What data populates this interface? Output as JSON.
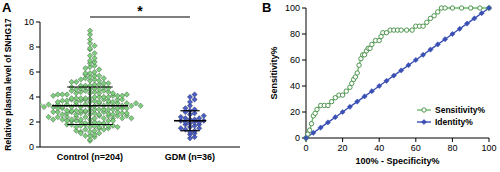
{
  "chart_data": [
    {
      "type": "strip",
      "panel": "A",
      "y_label": "Relative plasma level of SNHG17",
      "categories": [
        "Control (n=204)",
        "GDM (n=36)"
      ],
      "ylim": [
        0,
        10
      ],
      "yticks": [
        0,
        2,
        4,
        6,
        8,
        10
      ],
      "colors": [
        "#7fcf7f",
        "#4c5fc8"
      ],
      "marker": "diamond",
      "annotation": "*",
      "means": [
        3.3,
        2.1
      ],
      "sd": [
        1.5,
        0.8
      ],
      "points": [
        [
          0.5,
          0.6,
          0.8,
          0.9,
          1.0,
          0.9,
          1.1,
          1.2,
          1.3,
          1.4,
          1.5,
          1.2,
          1.4,
          1.3,
          1.1,
          1.5,
          1.6,
          1.7,
          1.8,
          1.9,
          2.0,
          1.6,
          1.7,
          1.8,
          1.9,
          1.6,
          1.7,
          1.8,
          1.9,
          2.0,
          1.7,
          1.8,
          1.9,
          1.6,
          2.1,
          2.2,
          2.3,
          2.4,
          2.5,
          2.1,
          2.2,
          2.3,
          2.4,
          2.5,
          2.1,
          2.2,
          2.3,
          2.4,
          2.5,
          2.1,
          2.2,
          2.3,
          2.4,
          2.5,
          2.2,
          2.3,
          2.4,
          2.1,
          2.6,
          2.7,
          2.8,
          2.9,
          3.0,
          2.6,
          2.7,
          2.8,
          2.9,
          3.0,
          2.6,
          2.7,
          2.8,
          2.9,
          3.0,
          2.6,
          2.7,
          2.8,
          2.9,
          3.0,
          2.6,
          2.7,
          2.8,
          2.9,
          3.0,
          2.7,
          2.8,
          2.9,
          3.1,
          3.2,
          3.3,
          3.4,
          3.5,
          3.1,
          3.2,
          3.3,
          3.4,
          3.5,
          3.1,
          3.2,
          3.3,
          3.4,
          3.5,
          3.1,
          3.2,
          3.3,
          3.4,
          3.5,
          3.1,
          3.2,
          3.3,
          3.4,
          3.5,
          3.2,
          3.3,
          3.4,
          3.6,
          3.7,
          3.8,
          3.9,
          4.0,
          3.6,
          3.7,
          3.8,
          3.9,
          4.0,
          3.6,
          3.7,
          3.8,
          3.9,
          4.0,
          3.6,
          3.7,
          3.8,
          3.9,
          4.0,
          3.7,
          3.8,
          3.6,
          3.9,
          4.1,
          4.2,
          4.3,
          4.4,
          4.5,
          4.1,
          4.2,
          4.3,
          4.4,
          4.5,
          4.1,
          4.2,
          4.3,
          4.4,
          4.5,
          4.2,
          4.3,
          4.1,
          4.6,
          4.7,
          4.8,
          4.9,
          5.0,
          4.6,
          4.7,
          4.8,
          4.9,
          5.0,
          4.6,
          4.7,
          4.8,
          4.9,
          5.1,
          5.2,
          5.3,
          5.4,
          5.5,
          5.1,
          5.2,
          5.3,
          5.4,
          5.5,
          5.6,
          5.7,
          5.8,
          5.9,
          6.0,
          5.7,
          5.9,
          6.2,
          6.4,
          6.5,
          6.7,
          6.8,
          6.9,
          6.3,
          7.1,
          7.3,
          7.5,
          7.8,
          7.9,
          8.1,
          8.3,
          8.6,
          9.0,
          9.3
        ],
        [
          0.7,
          0.8,
          1.0,
          1.1,
          1.2,
          1.3,
          1.4,
          1.5,
          1.5,
          1.6,
          1.7,
          1.8,
          1.8,
          1.9,
          2.0,
          2.0,
          2.0,
          2.1,
          2.1,
          2.2,
          2.2,
          2.3,
          2.3,
          2.4,
          2.5,
          2.6,
          2.7,
          2.8,
          2.9,
          3.0,
          3.1,
          3.3,
          3.6,
          3.8,
          4.0,
          4.2
        ]
      ]
    },
    {
      "type": "line",
      "panel": "B",
      "x_label": "100% - Specificity%",
      "y_label": "Sensitivity%",
      "xlim": [
        0,
        100
      ],
      "xticks": [
        0,
        20,
        40,
        60,
        80,
        100
      ],
      "ylim": [
        0,
        100
      ],
      "yticks": [
        0,
        20,
        40,
        60,
        80,
        100
      ],
      "legend": "lower right",
      "series": [
        {
          "name": "Sensitivity%",
          "color": "#6cbf6c",
          "marker": "circle",
          "x": [
            0,
            1,
            2,
            3,
            4,
            5,
            6,
            8,
            10,
            12,
            14,
            16,
            18,
            20,
            22,
            24,
            25,
            26,
            27,
            28,
            29,
            30,
            31,
            32,
            33,
            34,
            35,
            36,
            38,
            40,
            41,
            42,
            44,
            46,
            48,
            50,
            52,
            55,
            58,
            60,
            62,
            64,
            66,
            68,
            70,
            72,
            74,
            76,
            80,
            85,
            90,
            95,
            100
          ],
          "values": [
            0,
            3,
            6,
            11,
            17,
            19,
            22,
            25,
            25,
            25,
            28,
            31,
            33,
            33,
            36,
            39,
            42,
            45,
            47,
            50,
            56,
            61,
            64,
            64,
            67,
            69,
            69,
            72,
            75,
            75,
            78,
            81,
            81,
            83,
            83,
            83,
            83,
            83,
            83,
            86,
            86,
            86,
            89,
            92,
            94,
            97,
            100,
            100,
            100,
            100,
            100,
            100,
            100
          ]
        },
        {
          "name": "Identity%",
          "color": "#3a4fb3",
          "marker": "diamond",
          "x": [
            0,
            4,
            8,
            12,
            16,
            20,
            24,
            28,
            32,
            36,
            40,
            44,
            48,
            52,
            56,
            60,
            64,
            68,
            72,
            76,
            80,
            84,
            88,
            92,
            96,
            100
          ],
          "values": [
            0,
            4,
            8,
            12,
            16,
            20,
            24,
            28,
            32,
            36,
            40,
            44,
            48,
            52,
            56,
            60,
            64,
            68,
            72,
            76,
            80,
            84,
            88,
            92,
            96,
            100
          ]
        }
      ]
    }
  ]
}
